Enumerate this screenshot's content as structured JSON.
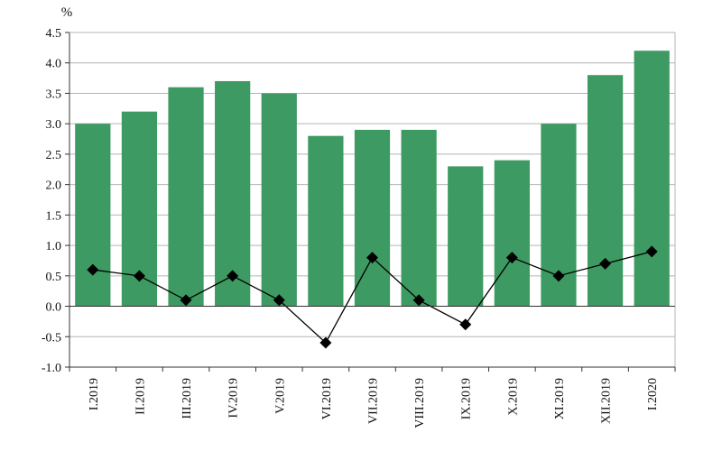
{
  "chart_data": {
    "type": "bar",
    "unit_label": "%",
    "categories": [
      "I.2019",
      "II.2019",
      "III.2019",
      "IV.2019",
      "V.2019",
      "VI.2019",
      "VII.2019",
      "VIII.2019",
      "IX.2019",
      "X.2019",
      "XI.2019",
      "XII.2019",
      "I.2020"
    ],
    "series": [
      {
        "type": "bar",
        "color": "#3d9a62",
        "values": [
          3.0,
          3.2,
          3.6,
          3.7,
          3.5,
          2.8,
          2.9,
          2.9,
          2.3,
          2.4,
          3.0,
          3.8,
          4.2
        ]
      },
      {
        "type": "line",
        "color": "#000000",
        "marker": "diamond",
        "values": [
          0.6,
          0.5,
          0.1,
          0.5,
          0.1,
          -0.6,
          0.8,
          0.1,
          -0.3,
          0.8,
          0.5,
          0.7,
          0.9
        ]
      }
    ],
    "ylim": [
      -1.0,
      4.5
    ],
    "yticks": [
      "-1.0",
      "-0.5",
      "0.0",
      "0.5",
      "1.0",
      "1.5",
      "2.0",
      "2.5",
      "3.0",
      "3.5",
      "4.0",
      "4.5"
    ],
    "grid": true,
    "legend": "none"
  }
}
